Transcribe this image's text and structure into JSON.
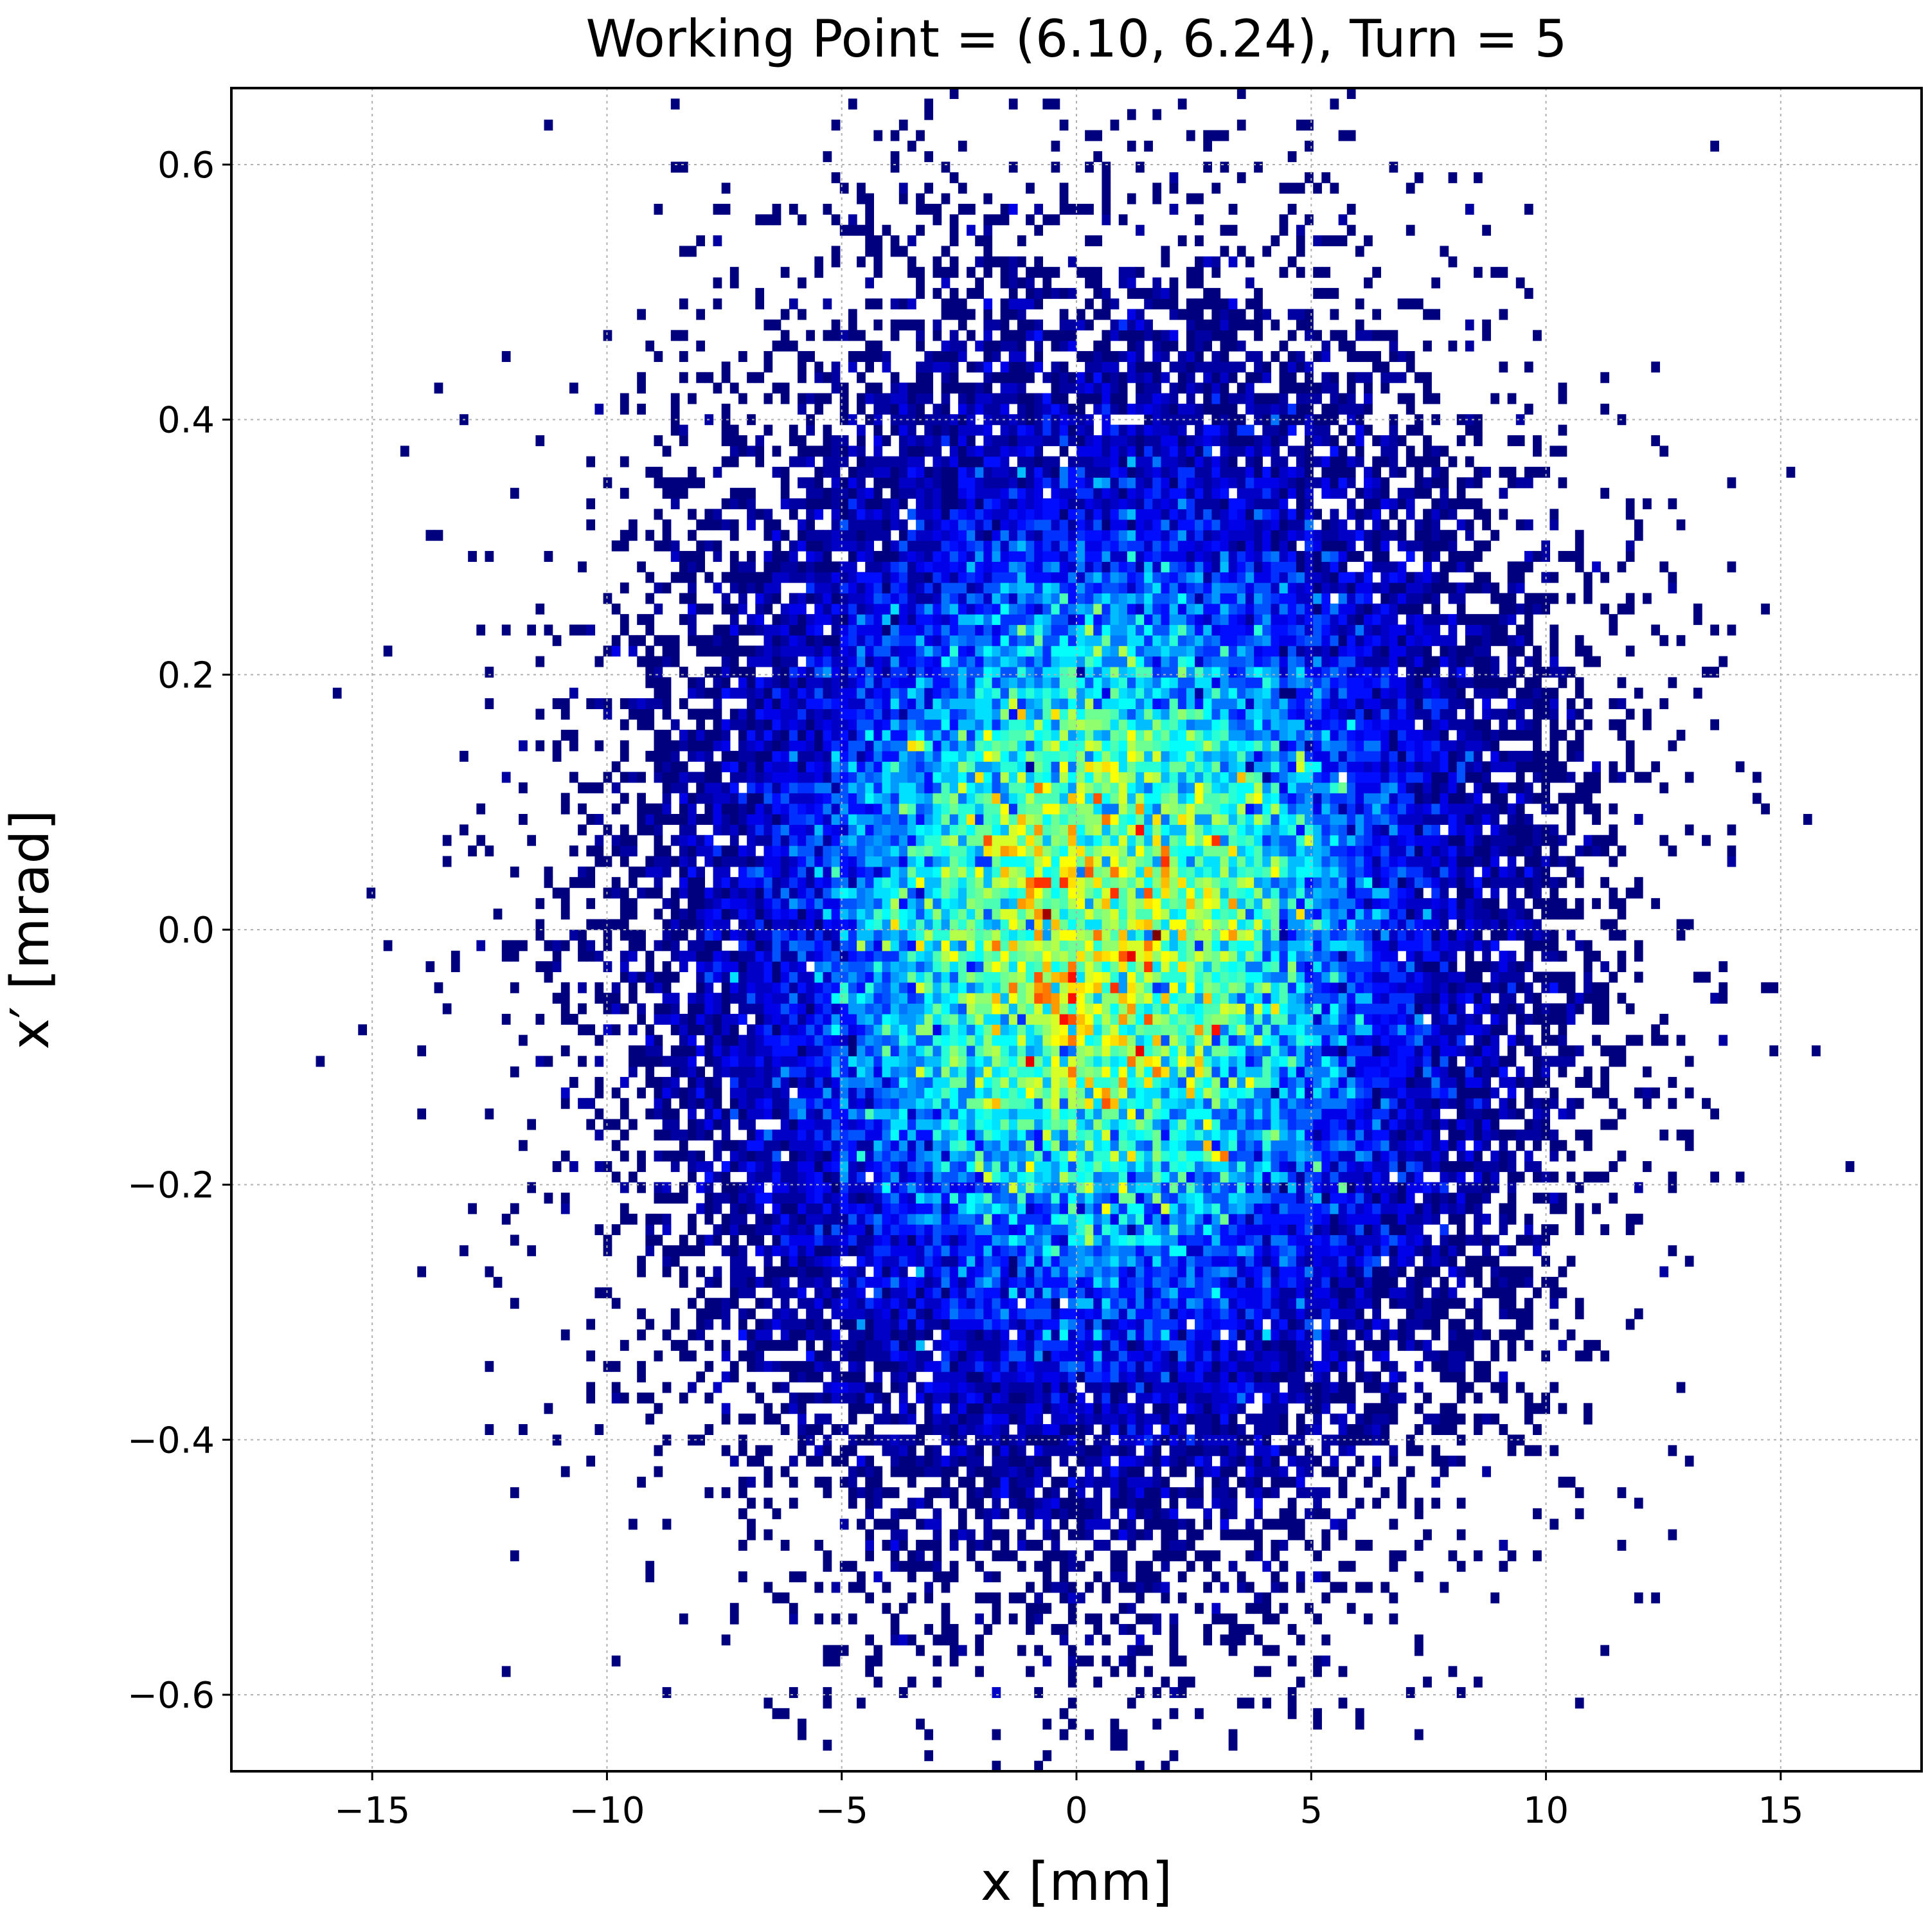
{
  "chart_data": {
    "type": "heatmap",
    "title": "Working Point = (6.10, 6.24), Turn = 5",
    "xlabel": "x [mm]",
    "ylabel": "x′ [mrad]",
    "xlim": [
      -18,
      18
    ],
    "ylim": [
      -0.66,
      0.66
    ],
    "x_ticks": [
      -15,
      -10,
      -5,
      0,
      5,
      10,
      15
    ],
    "x_tick_labels": [
      "−15",
      "−10",
      "−5",
      "0",
      "5",
      "10",
      "15"
    ],
    "y_ticks": [
      -0.6,
      -0.4,
      -0.2,
      0.0,
      0.2,
      0.4,
      0.6
    ],
    "y_tick_labels": [
      "−0.6",
      "−0.4",
      "−0.2",
      "0.0",
      "0.2",
      "0.4",
      "0.6"
    ],
    "grid": true,
    "colormap": [
      "#00007f",
      "#0000ff",
      "#007fff",
      "#00ffff",
      "#7fff7f",
      "#ffff00",
      "#ff7f00",
      "#ff0000",
      "#7f0000"
    ],
    "distribution": {
      "kind": "2d-gaussian-beam",
      "center": [
        0.5,
        0.0
      ],
      "sigma_x_mm": 4.0,
      "sigma_xp_mrad": 0.2,
      "particles": 60000,
      "bins_x": 200,
      "bins_y": 160
    }
  }
}
